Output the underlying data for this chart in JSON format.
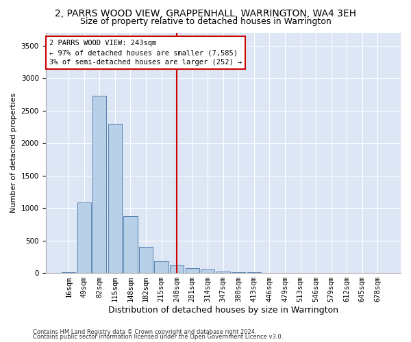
{
  "title": "2, PARRS WOOD VIEW, GRAPPENHALL, WARRINGTON, WA4 3EH",
  "subtitle": "Size of property relative to detached houses in Warrington",
  "xlabel": "Distribution of detached houses by size in Warrington",
  "ylabel": "Number of detached properties",
  "categories": [
    "16sqm",
    "49sqm",
    "82sqm",
    "115sqm",
    "148sqm",
    "182sqm",
    "215sqm",
    "248sqm",
    "281sqm",
    "314sqm",
    "347sqm",
    "380sqm",
    "413sqm",
    "446sqm",
    "479sqm",
    "513sqm",
    "546sqm",
    "579sqm",
    "612sqm",
    "645sqm",
    "678sqm"
  ],
  "values": [
    10,
    1090,
    2730,
    2290,
    870,
    400,
    175,
    120,
    75,
    55,
    20,
    10,
    8,
    4,
    0,
    0,
    0,
    0,
    0,
    0,
    0
  ],
  "bar_color": "#b8cfe8",
  "bar_edge_color": "#5580b0",
  "vline_index": 7,
  "vline_color": "#cc0000",
  "annotation_text": "2 PARRS WOOD VIEW: 243sqm\n← 97% of detached houses are smaller (7,585)\n3% of semi-detached houses are larger (252) →",
  "box_color": "#cc0000",
  "footer1": "Contains HM Land Registry data © Crown copyright and database right 2024.",
  "footer2": "Contains public sector information licensed under the Open Government Licence v3.0.",
  "title_fontsize": 10,
  "subtitle_fontsize": 9,
  "ylabel_fontsize": 8,
  "xlabel_fontsize": 9,
  "tick_fontsize": 7.5,
  "ylim": [
    0,
    3700
  ],
  "plot_background": "#dde6f5"
}
